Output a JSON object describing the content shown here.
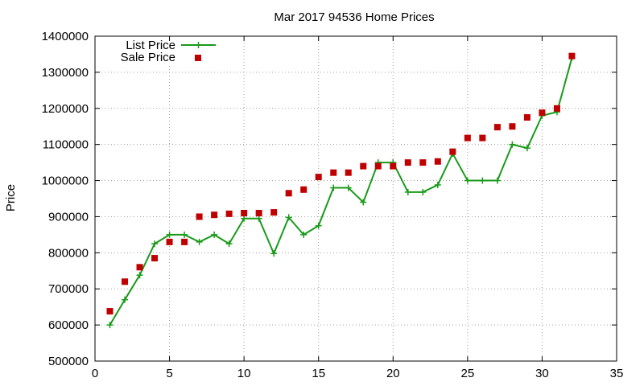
{
  "chart_data": {
    "type": "line",
    "title": "Mar 2017 94536 Home Prices",
    "xlabel": "",
    "ylabel": "Price",
    "xlim": [
      0,
      35
    ],
    "ylim": [
      500000,
      1400000
    ],
    "x_ticks": [
      0,
      5,
      10,
      15,
      20,
      25,
      30,
      35
    ],
    "y_ticks": [
      500000,
      600000,
      700000,
      800000,
      900000,
      1000000,
      1100000,
      1200000,
      1300000,
      1400000
    ],
    "grid": true,
    "legend_position": "top-left",
    "x": [
      1,
      2,
      3,
      4,
      5,
      6,
      7,
      8,
      9,
      10,
      11,
      12,
      13,
      14,
      15,
      16,
      17,
      18,
      19,
      20,
      21,
      22,
      23,
      24,
      25,
      26,
      27,
      28,
      29,
      30,
      31,
      32
    ],
    "series": [
      {
        "name": "List Price",
        "style": "line+cross",
        "color": "#1a9a1a",
        "values": [
          600000,
          670000,
          738000,
          825000,
          850000,
          850000,
          830000,
          850000,
          825000,
          895000,
          895000,
          798000,
          898000,
          850000,
          875000,
          980000,
          980000,
          940000,
          1050000,
          1050000,
          968000,
          968000,
          988000,
          1075000,
          1000000,
          1000000,
          1000000,
          1100000,
          1090000,
          1180000,
          1190000,
          1340000
        ]
      },
      {
        "name": "Sale Price",
        "style": "square",
        "color": "#c00000",
        "values": [
          638000,
          720000,
          760000,
          785000,
          830000,
          830000,
          900000,
          905000,
          908000,
          910000,
          910000,
          912000,
          965000,
          975000,
          1010000,
          1022000,
          1022000,
          1040000,
          1040000,
          1040000,
          1050000,
          1050000,
          1053000,
          1080000,
          1118000,
          1118000,
          1148000,
          1150000,
          1175000,
          1188000,
          1200000,
          1345000
        ]
      }
    ]
  }
}
